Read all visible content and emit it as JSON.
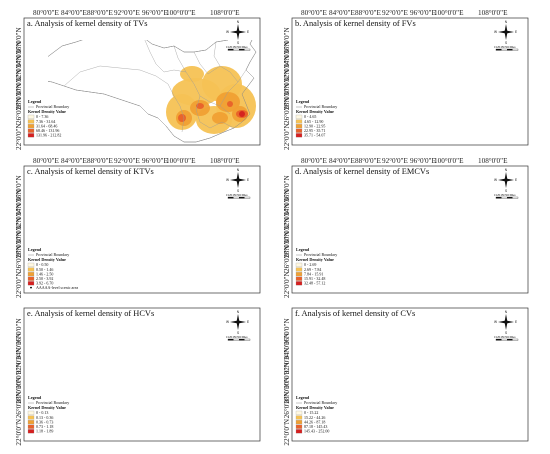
{
  "top_lon_labels": [
    "80°0'0\"E",
    "84°0'0\"E",
    "88°0'0\"E",
    "92°0'0\"E",
    "96°0'0\"E",
    "100°0'0\"E",
    "108°0'0\"E"
  ],
  "lat_labels": [
    "36°0'0\"N",
    "34°0'0\"N",
    "32°0'0\"N",
    "30°0'0\"N",
    "28°0'0\"N",
    "26°0'0\"N",
    "22°0'0\"N"
  ],
  "compass": {
    "n": "N",
    "w": "W",
    "e": "E",
    "s": "S",
    "scale": "0  125  250   500 Miles"
  },
  "legend_common": {
    "title": "Legend",
    "boundary": "Provincial Boundary",
    "kdv": "Kernel Density Value"
  },
  "colors": [
    "#fff8e1",
    "#f6c254",
    "#f0a033",
    "#e8612a",
    "#d42020"
  ],
  "panels": [
    {
      "id": "a",
      "title": "a. Analysis of  kernel  density of TVs",
      "legend_ranges": [
        "0 - 7.36",
        "7.36 - 31.64",
        "31.64 - 68.46",
        "68.46 - 131.96",
        "131.96 - 212.82"
      ],
      "has_points": false
    },
    {
      "id": "b",
      "title": "b. Analysis of  kernel  density of FVs",
      "legend_ranges": [
        "0 - 4.65",
        "4.65 - 12.90",
        "12.90 - 22.95",
        "22.95 - 35.71",
        "35.71 - 54.07"
      ],
      "has_points": false
    },
    {
      "id": "c",
      "title": "c. Analysis of  kernel  density of KTVs",
      "legend_ranges": [
        "0 - 0.50",
        "0.50 - 1.46",
        "1.46 - 2.50",
        "2.50 - 3.92",
        "3.92 - 6.70"
      ],
      "has_points": true,
      "points_label": "AAAAA-level scenic area"
    },
    {
      "id": "d",
      "title": "d. Analysis of  kernel  density of EMCVs",
      "legend_ranges": [
        "0 - 2.69",
        "2.69 - 7.84",
        "7.84 - 15.91",
        "15.91 - 32.48",
        "32.48 - 57.12"
      ],
      "has_points": false
    },
    {
      "id": "e",
      "title": "e. Analysis of  kernel  density of HCVs",
      "legend_ranges": [
        "0 - 0.13",
        "0.13 - 0.36",
        "0.36 - 0.73",
        "0.73 - 1.18",
        "1.18 - 1.89"
      ],
      "has_points": false
    },
    {
      "id": "f",
      "title": "f. Analysis of  kernel  density of CVs",
      "legend_ranges": [
        "0 - 15.22",
        "15.22 - 44.26",
        "44.26 - 87.18",
        "87.18 - 145.43",
        "145.43 - 252.00"
      ],
      "has_points": false
    }
  ]
}
